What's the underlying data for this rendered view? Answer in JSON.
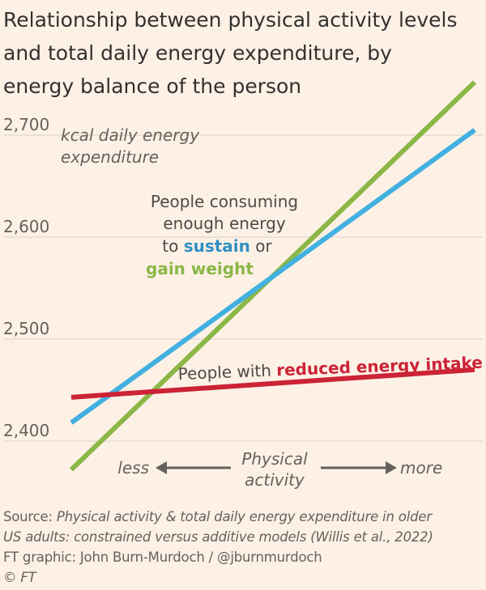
{
  "title_lines": [
    "Relationship between physical activity levels",
    "and total daily energy expenditure, by",
    "energy balance of the person"
  ],
  "chart_data": {
    "type": "line",
    "ylabel_lines": [
      "kcal daily energy",
      "expenditure"
    ],
    "y_ticks": [
      2400,
      2500,
      2600,
      2700
    ],
    "y_tick_labels": [
      "2,400",
      "2,500",
      "2,600",
      "2,700"
    ],
    "ylim": [
      2370,
      2760
    ],
    "x_range": [
      0,
      1
    ],
    "grid": true,
    "x_axis": {
      "less": "less",
      "center_lines": [
        "Physical",
        "activity"
      ],
      "more": "more"
    },
    "series": [
      {
        "key": "gain",
        "color": "#8bb746",
        "x": [
          0,
          1
        ],
        "y": [
          2372,
          2752
        ]
      },
      {
        "key": "sustain",
        "color": "#42b0e0",
        "x": [
          0,
          1
        ],
        "y": [
          2418,
          2705
        ]
      },
      {
        "key": "reduced",
        "color": "#cc2336",
        "x": [
          0,
          1
        ],
        "y": [
          2443,
          2470
        ]
      }
    ],
    "annotations": {
      "sustain_gain": {
        "line1": "People consuming",
        "line2": "enough energy",
        "line3_prefix": "to ",
        "sustain": "sustain",
        "line3_suffix": " or",
        "gain": "gain weight"
      },
      "reduced": {
        "prefix": "People with ",
        "highlight": "reduced energy intake"
      }
    }
  },
  "footer": {
    "source_label": "Source: ",
    "source_line1": "Physical activity & total daily energy expenditure in older",
    "source_line2": "US adults: constrained versus additive models (Willis et al., 2022)",
    "credit": "FT graphic: John Burn-Murdoch / @jburnmurdoch",
    "copyright_symbol": "© ",
    "copyright_name": "FT"
  },
  "colors": {
    "background": "#fdf1e6",
    "grid": "#e3d8ce",
    "text": "#33302e",
    "muted": "#66605c",
    "sustain": "#2f8fc2",
    "gain": "#8bb746",
    "reduced": "#cc2336"
  }
}
